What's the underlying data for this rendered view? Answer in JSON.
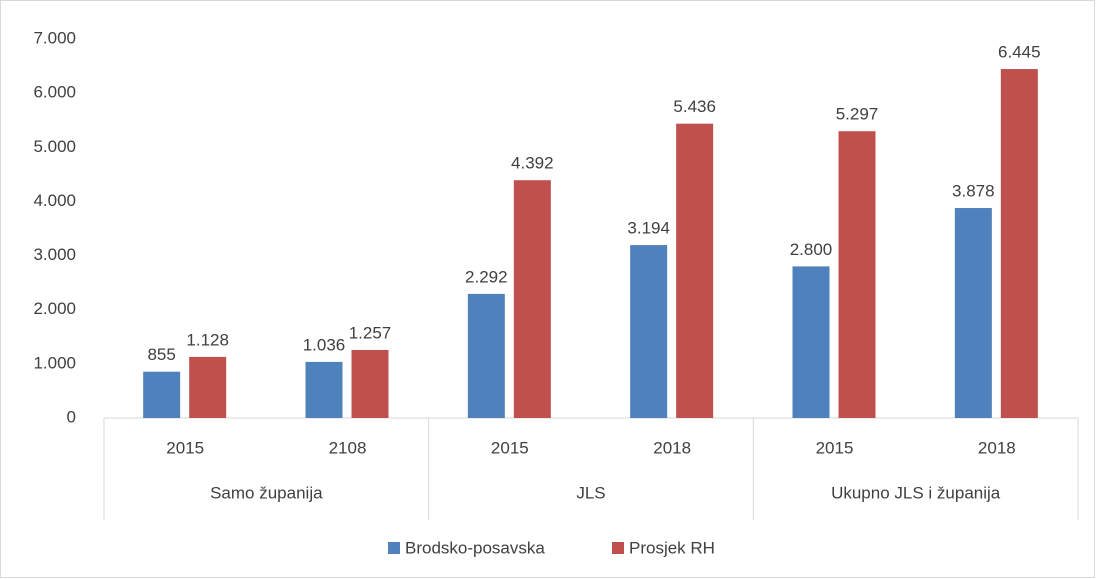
{
  "chart_data": {
    "type": "bar",
    "categories": [
      "2015",
      "2108",
      "2015",
      "2018",
      "2015",
      "2018"
    ],
    "groups": [
      "Samo županija",
      "JLS",
      "Ukupno JLS i županija"
    ],
    "series": [
      {
        "name": "Brodsko-posavska",
        "color": "#4f81bd",
        "values": [
          855,
          1036,
          2292,
          3194,
          2800,
          3878
        ],
        "value_labels": [
          "855",
          "1.036",
          "2.292",
          "3.194",
          "2.800",
          "3.878"
        ]
      },
      {
        "name": "Prosjek RH",
        "color": "#c0504d",
        "values": [
          1128,
          1257,
          4392,
          5436,
          5297,
          6445
        ],
        "value_labels": [
          "1.128",
          "1.257",
          "4.392",
          "5.436",
          "5.297",
          "6.445"
        ]
      }
    ],
    "ylim": [
      0,
      7000
    ],
    "yticks": [
      0,
      {
        "value": 1000,
        "label": "1.000"
      },
      {
        "value": 2000,
        "label": "2.000"
      },
      {
        "value": 3000,
        "label": "3.000"
      },
      {
        "value": 4000,
        "label": "4.000"
      },
      {
        "value": 5000,
        "label": "5.000"
      },
      {
        "value": 6000,
        "label": "6.000"
      },
      {
        "value": 7000,
        "label": "7.000"
      }
    ],
    "grid": false,
    "legend": "bottom"
  }
}
